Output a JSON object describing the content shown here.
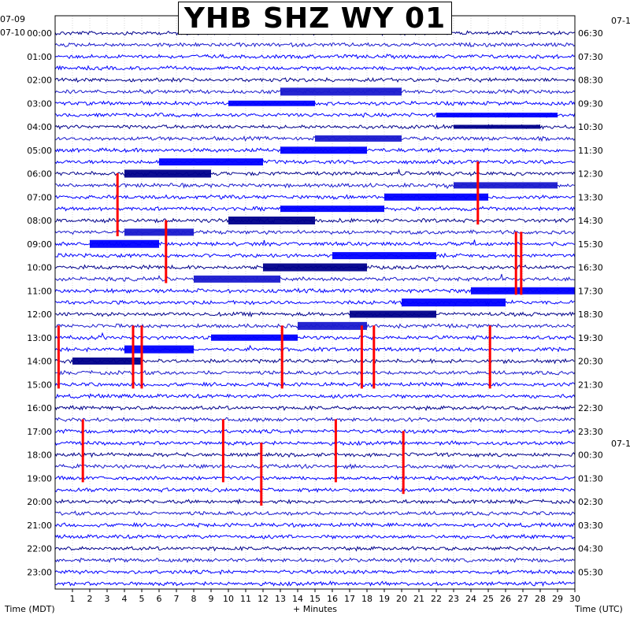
{
  "title": "YHB SHZ WY 01",
  "left_date_top": "07-09",
  "left_date_start": "07-10",
  "right_date_top": "07-1",
  "right_date_mid": "07-1",
  "xlabel": "+ Minutes",
  "left_axis_label": "Time (MDT)",
  "right_axis_label": "Time (UTC)",
  "colors": {
    "trace_a": "#00008b",
    "trace_b": "#0000ff",
    "trace_c": "#1a1acd",
    "event": "#ff0000",
    "background": "#ffffff"
  },
  "chart_data": {
    "type": "helicorder",
    "title": "YHB SHZ WY 01",
    "xlabel": "+ Minutes",
    "xlim": [
      0,
      30
    ],
    "x_ticks": [
      "1",
      "2",
      "3",
      "4",
      "5",
      "6",
      "7",
      "8",
      "9",
      "10",
      "11",
      "12",
      "13",
      "14",
      "15",
      "16",
      "17",
      "18",
      "19",
      "20",
      "21",
      "22",
      "23",
      "24",
      "25",
      "26",
      "27",
      "28",
      "29",
      "30"
    ],
    "rows_per_hour": 2,
    "hour_labels_left": [
      "00:00",
      "01:00",
      "02:00",
      "03:00",
      "04:00",
      "05:00",
      "06:00",
      "07:00",
      "08:00",
      "09:00",
      "10:00",
      "11:00",
      "12:00",
      "13:00",
      "14:00",
      "15:00",
      "16:00",
      "17:00",
      "18:00",
      "19:00",
      "20:00",
      "21:00",
      "22:00",
      "23:00"
    ],
    "hour_labels_right": [
      "06:30",
      "07:30",
      "08:30",
      "09:30",
      "10:30",
      "11:30",
      "12:30",
      "13:30",
      "14:30",
      "15:30",
      "16:30",
      "17:30",
      "18:30",
      "19:30",
      "20:30",
      "21:30",
      "22:30",
      "23:30",
      "00:30",
      "01:30",
      "02:30",
      "03:30",
      "04:30",
      "05:30"
    ],
    "grid": true,
    "event_markers": [
      {
        "row": 16,
        "minute": 3.6
      },
      {
        "row": 20,
        "minute": 6.4
      },
      {
        "row": 29,
        "minute": 0.2
      },
      {
        "row": 29,
        "minute": 4.5
      },
      {
        "row": 29,
        "minute": 5.0
      },
      {
        "row": 29,
        "minute": 13.1
      },
      {
        "row": 29,
        "minute": 17.7
      },
      {
        "row": 29,
        "minute": 18.4
      },
      {
        "row": 29,
        "minute": 25.1
      },
      {
        "row": 15,
        "minute": 24.4
      },
      {
        "row": 21,
        "minute": 26.6
      },
      {
        "row": 21,
        "minute": 26.9
      },
      {
        "row": 37,
        "minute": 1.6
      },
      {
        "row": 37,
        "minute": 9.7
      },
      {
        "row": 39,
        "minute": 11.9
      },
      {
        "row": 37,
        "minute": 16.2
      },
      {
        "row": 38,
        "minute": 20.1
      }
    ]
  }
}
